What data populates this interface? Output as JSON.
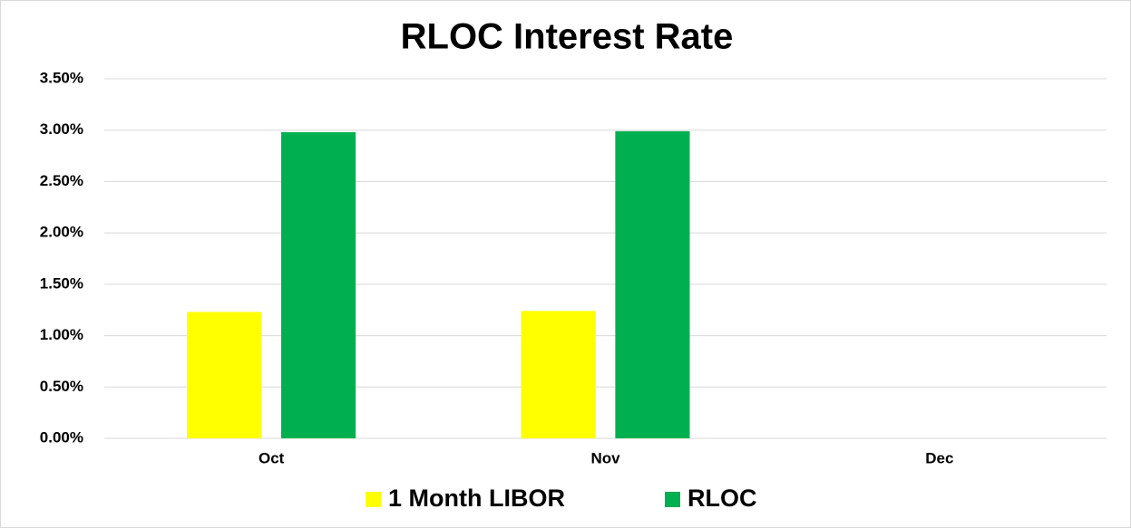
{
  "chart_data": {
    "type": "bar",
    "title": "RLOC Interest Rate",
    "categories": [
      "Oct",
      "Nov",
      "Dec"
    ],
    "series": [
      {
        "name": "1 Month LIBOR",
        "color": "#ffff00",
        "values": [
          1.23,
          1.24,
          null
        ]
      },
      {
        "name": "RLOC",
        "color": "#00b050",
        "values": [
          2.98,
          2.99,
          null
        ]
      }
    ],
    "ylim": [
      0,
      3.5
    ],
    "yticks": [
      {
        "value": 0,
        "label": "0.00%"
      },
      {
        "value": 0.5,
        "label": "0.50%"
      },
      {
        "value": 1,
        "label": "1.00%"
      },
      {
        "value": 1.5,
        "label": "1.50%"
      },
      {
        "value": 2,
        "label": "2.00%"
      },
      {
        "value": 2.5,
        "label": "2.50%"
      },
      {
        "value": 3,
        "label": "3.00%"
      },
      {
        "value": 3.5,
        "label": "3.50%"
      }
    ],
    "grid": true,
    "legend": "bottom"
  }
}
